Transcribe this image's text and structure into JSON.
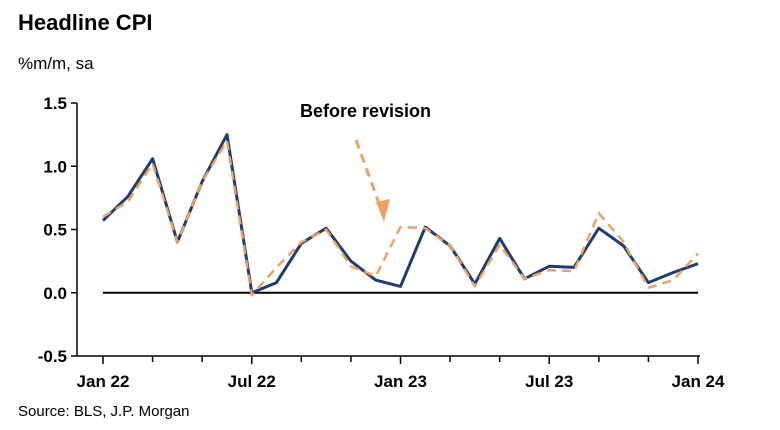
{
  "chart_data": {
    "type": "line",
    "title": "Headline CPI",
    "units": "%m/m, sa",
    "source": "Source: BLS, J.P. Morgan",
    "annotation": "Before revision",
    "ylim": [
      -0.5,
      1.5
    ],
    "y_ticks": [
      "1.5",
      "1.0",
      "0.5",
      "0.0",
      "-0.5"
    ],
    "x_tick_labels": [
      "Jan 22",
      "Jul 22",
      "Jan 23",
      "Jul 23",
      "Jan 24"
    ],
    "x": [
      "Jan 22",
      "Feb 22",
      "Mar 22",
      "Apr 22",
      "May 22",
      "Jun 22",
      "Jul 22",
      "Aug 22",
      "Sep 22",
      "Oct 22",
      "Nov 22",
      "Dec 22",
      "Jan 23",
      "Feb 23",
      "Mar 23",
      "Apr 23",
      "May 23",
      "Jun 23",
      "Jul 23",
      "Aug 23",
      "Sep 23",
      "Oct 23",
      "Nov 23",
      "Dec 23",
      "Jan 24"
    ],
    "series": [
      {
        "key": "revised",
        "color": "#1f3d73",
        "style": "solid",
        "values": [
          0.57,
          0.76,
          1.06,
          0.4,
          0.88,
          1.25,
          0.0,
          0.08,
          0.39,
          0.51,
          0.25,
          0.1,
          0.05,
          0.52,
          0.37,
          0.07,
          0.43,
          0.11,
          0.21,
          0.2,
          0.51,
          0.37,
          0.08,
          0.16,
          0.23
        ]
      },
      {
        "key": "before-revision",
        "color": "#f0a060",
        "style": "dashed",
        "values": [
          0.6,
          0.72,
          1.02,
          0.4,
          0.88,
          1.2,
          -0.02,
          0.2,
          0.4,
          0.5,
          0.21,
          0.13,
          0.52,
          0.51,
          0.37,
          0.05,
          0.38,
          0.11,
          0.18,
          0.17,
          0.63,
          0.4,
          0.04,
          0.1,
          0.31
        ]
      }
    ]
  }
}
